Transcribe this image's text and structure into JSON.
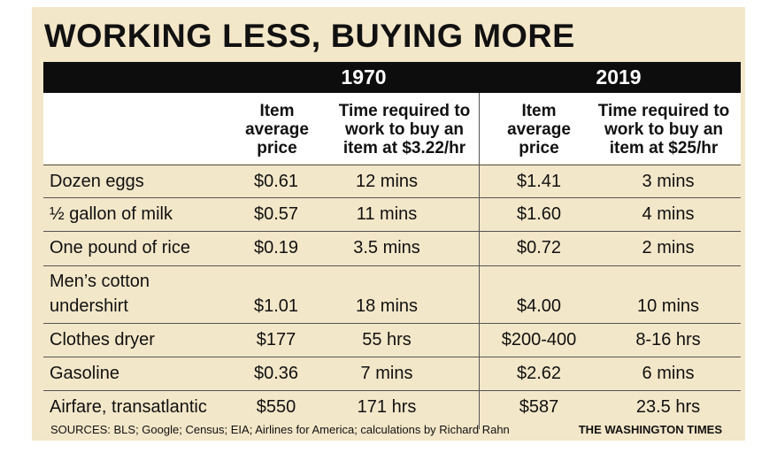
{
  "title": "WORKING LESS, BUYING MORE",
  "years": {
    "y1": "1970",
    "y2": "2019"
  },
  "headers": {
    "price_1970": [
      "Item",
      "average",
      "price"
    ],
    "time_1970": [
      "Time required to",
      "work to buy an",
      "item at $3.22/hr"
    ],
    "price_2019": [
      "Item",
      "average",
      "price"
    ],
    "time_2019": [
      "Time required to",
      "work to buy an",
      "item at $25/hr"
    ]
  },
  "rows": [
    {
      "item": "Dozen eggs",
      "p1970": "$0.61",
      "t1970": "12 mins",
      "p2019": "$1.41",
      "t2019": "3 mins"
    },
    {
      "item": "½ gallon of milk",
      "p1970": "$0.57",
      "t1970": "11 mins",
      "p2019": "$1.60",
      "t2019": "4 mins"
    },
    {
      "item": "One pound of rice",
      "p1970": "$0.19",
      "t1970": "3.5 mins",
      "p2019": "$0.72",
      "t2019": "2 mins"
    },
    {
      "item": "Men’s cotton",
      "item2": "undershirt",
      "p1970": "$1.01",
      "t1970": "18 mins",
      "p2019": "$4.00",
      "t2019": "10 mins"
    },
    {
      "item": "Clothes dryer",
      "p1970": "$177",
      "t1970": "55 hrs",
      "p2019": "$200-400",
      "t2019": "8-16 hrs"
    },
    {
      "item": "Gasoline",
      "p1970": "$0.36",
      "t1970": "7 mins",
      "p2019": "$2.62",
      "t2019": "6 mins"
    },
    {
      "item": "Airfare, transatlantic",
      "p1970": "$550",
      "t1970": "171 hrs",
      "p2019": "$587",
      "t2019": "23.5 hrs"
    }
  ],
  "sources": "SOURCES: BLS; Google; Census; EIA; Airlines for America; calculations by Richard Rahn",
  "publisher": "THE WASHINGTON TIMES"
}
